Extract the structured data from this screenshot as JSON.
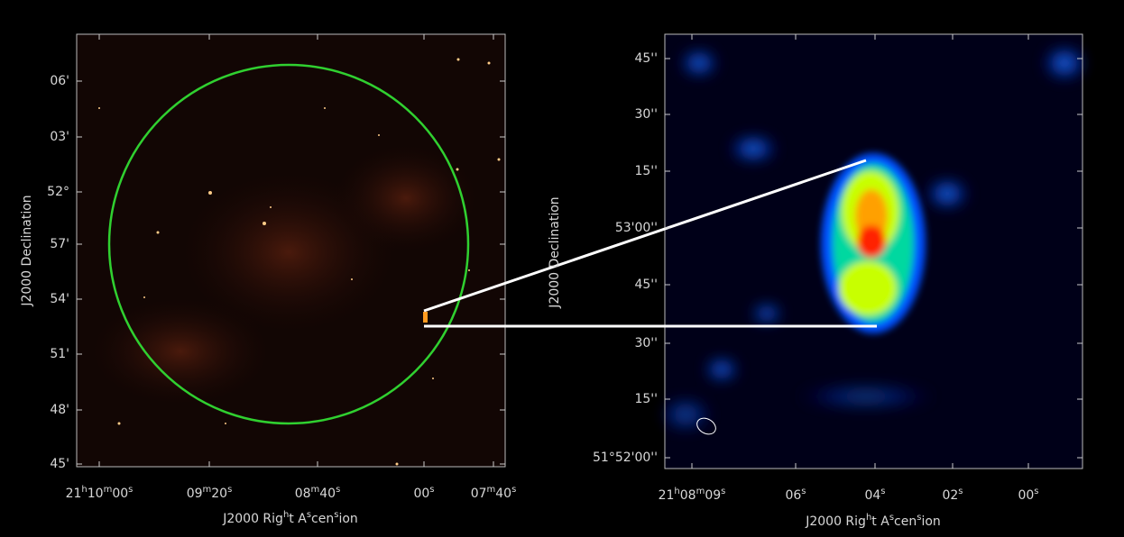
{
  "left_panel": {
    "y_axis_label": "J2000 Declination",
    "x_axis_label": "J2000 Right Ascension",
    "y_ticks": [
      "06'",
      "03'",
      "52°",
      "57'",
      "54'",
      "51'",
      "48'",
      "45'"
    ],
    "x_ticks": [
      "21h10m00s",
      "09m20s",
      "08m40s",
      "00s",
      "07m40s"
    ]
  },
  "right_panel": {
    "y_axis_label": "J2000 Declination",
    "x_axis_label": "J2000 Right Ascension",
    "y_ticks": [
      "45''",
      "30''",
      "15''",
      "53'00''",
      "45''",
      "30''",
      "15''",
      "51°52'00''"
    ],
    "x_ticks": [
      "21h08m09s",
      "06s",
      "04s",
      "02s",
      "00s"
    ]
  }
}
